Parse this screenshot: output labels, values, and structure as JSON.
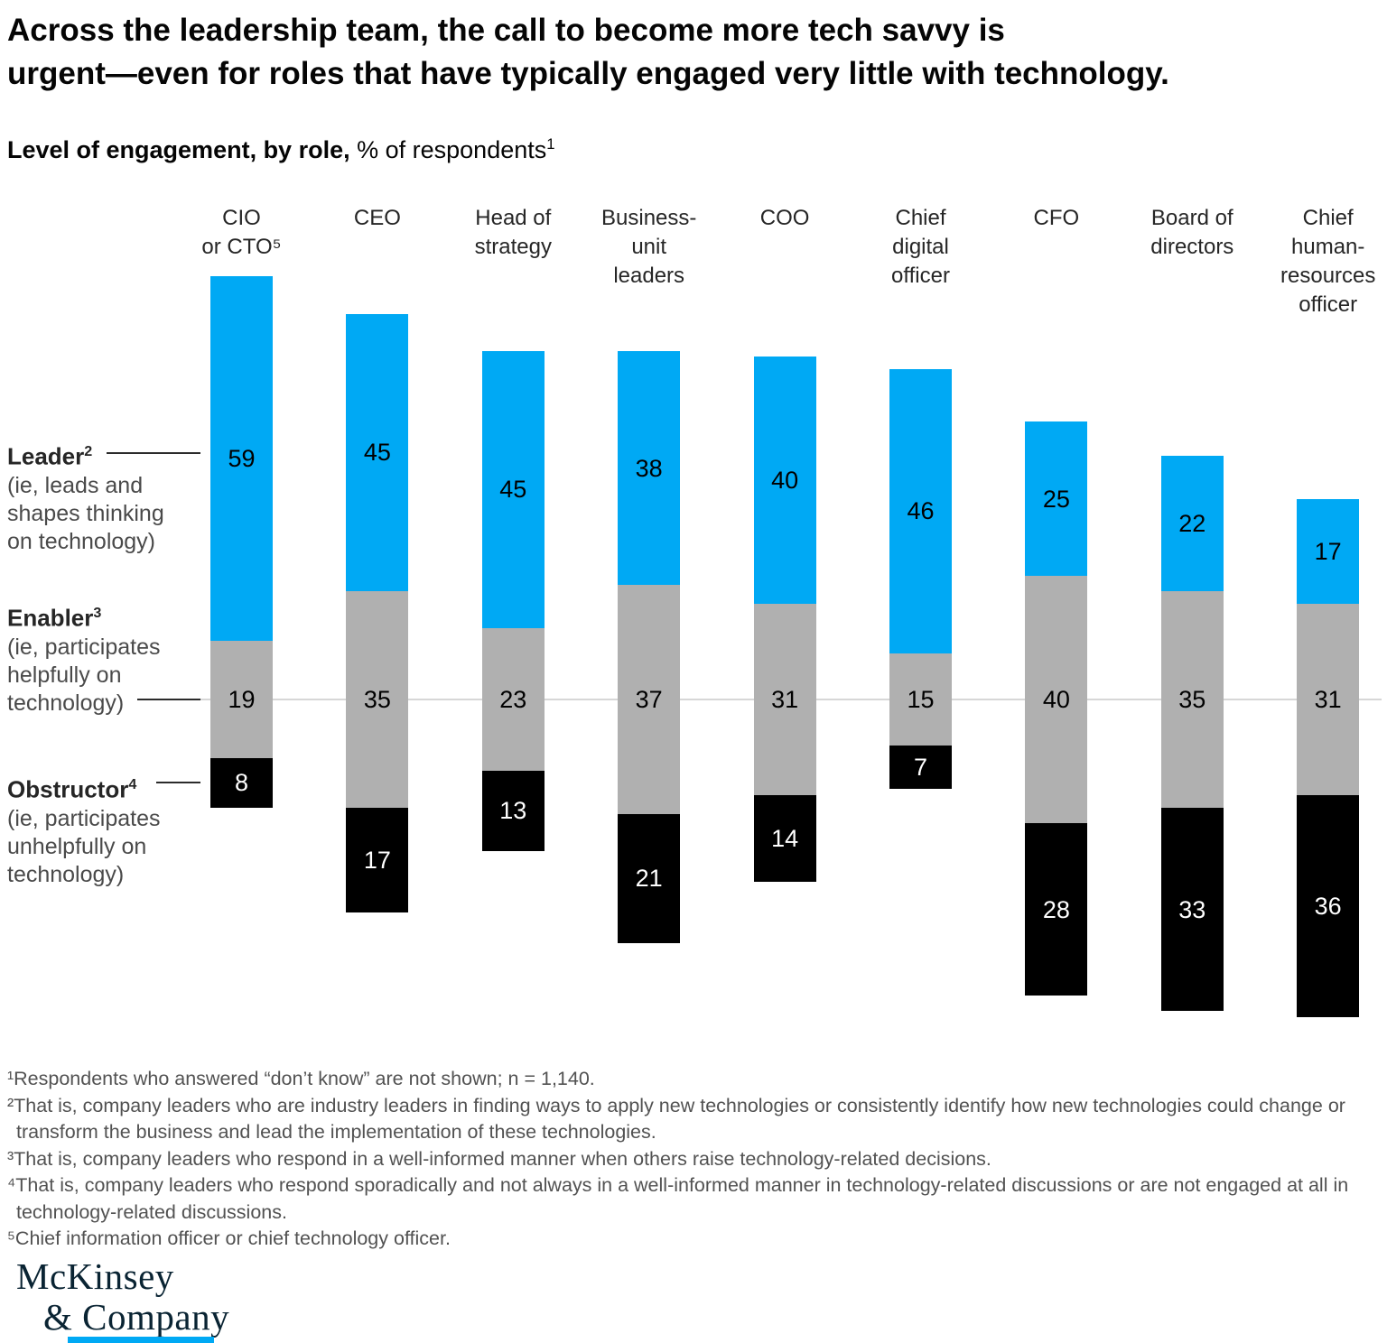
{
  "title": {
    "line1": "Across the leadership team, the call to become more tech savvy is",
    "line2": "urgent—even for roles that have typically engaged very little with technology."
  },
  "subtitle": {
    "bold": "Level of engagement, by role,",
    "regular": " % of respondents",
    "sup": "1"
  },
  "chart_data": {
    "type": "bar",
    "stacked": true,
    "orientation": "vertical",
    "alignment": "diverging stacked bars; each bar's Enabler segment is centered on a shared light-gray midline",
    "unit": "% of respondents",
    "n_shown_in_footnote": "n = 1,140",
    "categories": [
      "CIO or CTO",
      "CEO",
      "Head of strategy",
      "Business-unit leaders",
      "COO",
      "Chief digital officer",
      "CFO",
      "Board of directors",
      "Chief human-resources officer"
    ],
    "category_label_lines": [
      [
        "CIO",
        "or CTO⁵"
      ],
      [
        "CEO"
      ],
      [
        "Head of",
        "strategy"
      ],
      [
        "Business-",
        "unit",
        "leaders"
      ],
      [
        "COO"
      ],
      [
        "Chief",
        "digital",
        "officer"
      ],
      [
        "CFO"
      ],
      [
        "Board of",
        "directors"
      ],
      [
        "Chief",
        "human-",
        "resources",
        "officer"
      ]
    ],
    "series": [
      {
        "name": "Leader",
        "sup": "2",
        "desc_lines": [
          "(ie, leads and",
          "shapes thinking",
          "on technology)"
        ],
        "color": "#00A9F4",
        "label_color": "#000000",
        "values": [
          59,
          45,
          45,
          38,
          40,
          46,
          25,
          22,
          17
        ]
      },
      {
        "name": "Enabler",
        "sup": "3",
        "desc_lines": [
          "(ie, participates",
          "helpfully on",
          "technology)"
        ],
        "color": "#B0B0B0",
        "label_color": "#000000",
        "values": [
          19,
          35,
          23,
          37,
          31,
          15,
          40,
          35,
          31
        ]
      },
      {
        "name": "Obstructor",
        "sup": "4",
        "desc_lines": [
          "(ie, participates",
          "unhelpfully on",
          "technology)"
        ],
        "color": "#000000",
        "label_color": "#FFFFFF",
        "values": [
          8,
          17,
          13,
          21,
          14,
          7,
          28,
          33,
          36
        ]
      }
    ],
    "baseline_color": "#D7D7D7"
  },
  "footnote_lines": [
    "¹Respondents who answered “don’t know” are not shown; n = 1,140.",
    "²That is, company leaders who are industry leaders in finding ways to apply new technologies or consistently identify how new technologies could change or",
    "transform the business and lead the implementation of these technologies.",
    "³That is, company leaders who respond in a well-informed manner when others raise technology-related decisions.",
    "⁴That is, company leaders who respond sporadically and not always in a well-informed manner in technology-related discussions or are not engaged at all in",
    "technology-related discussions.",
    "⁵Chief information officer or chief technology officer."
  ],
  "logo": {
    "line1": "McKinsey",
    "line2": "& Company",
    "accent_bar_color": "#00A9F4"
  }
}
